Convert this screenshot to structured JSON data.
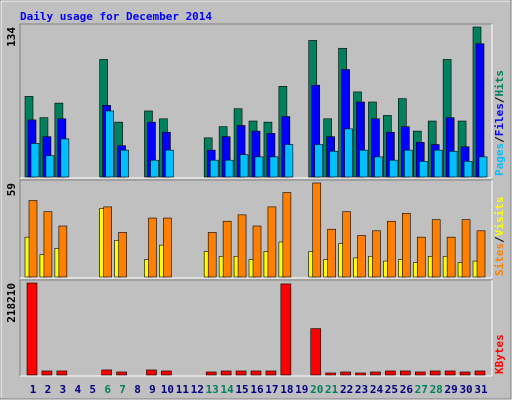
{
  "chart_data": [
    {
      "type": "bar",
      "title": "Daily usage for December 2014",
      "ylim": [
        0,
        134
      ],
      "yticks": [
        134
      ],
      "series": [
        {
          "name": "Hits",
          "color": "#00805c",
          "values": [
            72,
            53,
            66,
            0,
            0,
            105,
            49,
            0,
            59,
            52,
            0,
            0,
            35,
            45,
            61,
            50,
            49,
            81,
            0,
            122,
            52,
            115,
            76,
            67,
            55,
            70,
            41,
            50,
            105,
            50,
            134
          ]
        },
        {
          "name": "Files",
          "color": "#0000ff",
          "values": [
            51,
            36,
            52,
            0,
            0,
            64,
            28,
            0,
            49,
            40,
            0,
            0,
            24,
            36,
            46,
            41,
            39,
            54,
            0,
            82,
            36,
            96,
            67,
            52,
            40,
            45,
            31,
            29,
            53,
            27,
            119
          ]
        },
        {
          "name": "Pages",
          "color": "#00c0ff",
          "values": [
            30,
            19,
            34,
            0,
            0,
            59,
            24,
            0,
            15,
            24,
            0,
            0,
            15,
            15,
            20,
            18,
            18,
            29,
            0,
            29,
            23,
            43,
            24,
            18,
            15,
            24,
            14,
            24,
            23,
            14,
            18
          ]
        }
      ],
      "separator": "/"
    },
    {
      "type": "bar",
      "ylim": [
        0,
        59
      ],
      "yticks": [
        59
      ],
      "series": [
        {
          "name": "Visits",
          "color": "#ffff00",
          "values": [
            25,
            14,
            18,
            0,
            0,
            43,
            23,
            0,
            11,
            20,
            0,
            0,
            16,
            13,
            13,
            11,
            16,
            22,
            0,
            16,
            11,
            21,
            12,
            13,
            10,
            11,
            9,
            13,
            13,
            9,
            10
          ]
        },
        {
          "name": "Sites",
          "color": "#ff8000",
          "values": [
            48,
            41,
            32,
            0,
            0,
            44,
            28,
            0,
            37,
            37,
            0,
            0,
            28,
            35,
            39,
            32,
            44,
            53,
            0,
            59,
            30,
            41,
            26,
            29,
            35,
            40,
            25,
            36,
            25,
            36,
            29
          ]
        }
      ],
      "separator": "/"
    },
    {
      "type": "bar",
      "ylim": [
        0,
        218210
      ],
      "yticks": [
        218210
      ],
      "categories": [
        "1",
        "2",
        "3",
        "4",
        "5",
        "6",
        "7",
        "8",
        "9",
        "10",
        "11",
        "12",
        "13",
        "14",
        "15",
        "16",
        "17",
        "18",
        "19",
        "20",
        "21",
        "22",
        "23",
        "24",
        "25",
        "26",
        "27",
        "28",
        "29",
        "30",
        "31"
      ],
      "label_colors": [
        "#000080",
        "#000080",
        "#000080",
        "#000080",
        "#000080",
        "#00805c",
        "#00805c",
        "#000080",
        "#000080",
        "#000080",
        "#000080",
        "#000080",
        "#00805c",
        "#00805c",
        "#000080",
        "#000080",
        "#000080",
        "#000080",
        "#000080",
        "#00805c",
        "#00805c",
        "#000080",
        "#000080",
        "#000080",
        "#000080",
        "#000080",
        "#00805c",
        "#00805c",
        "#000080",
        "#000080",
        "#000080"
      ],
      "series": [
        {
          "name": "KBytes",
          "color": "#ff0000",
          "values": [
            218210,
            9600,
            9600,
            0,
            0,
            12000,
            7200,
            0,
            12000,
            9600,
            0,
            0,
            7200,
            9600,
            9600,
            9600,
            9600,
            216000,
            0,
            110000,
            4800,
            7200,
            4800,
            7200,
            9600,
            9600,
            7200,
            9600,
            9600,
            7200,
            9600
          ]
        }
      ]
    }
  ]
}
